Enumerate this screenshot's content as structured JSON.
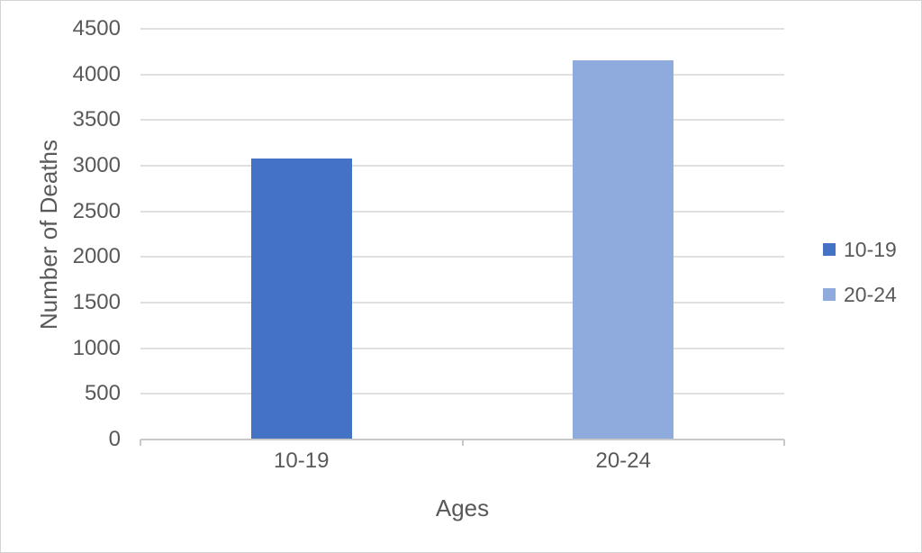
{
  "window": {
    "background": "#FFFFFF",
    "border_color": "#D3D3D3"
  },
  "chart_data": {
    "type": "bar",
    "title": "",
    "xlabel": "Ages",
    "ylabel": "Number of Deaths",
    "categories": [
      "10-19",
      "20-24"
    ],
    "series": [
      {
        "name": "10-19",
        "color": "#4472C4",
        "values": [
          3075,
          null
        ]
      },
      {
        "name": "20-24",
        "color": "#8FAADC",
        "values": [
          null,
          4150
        ]
      }
    ],
    "values_by_category": [
      3075,
      4150
    ],
    "ylim": [
      0,
      4500
    ],
    "ytick_step": 500,
    "ytick_labels": [
      "0",
      "500",
      "1000",
      "1500",
      "2000",
      "2500",
      "3000",
      "3500",
      "4000",
      "4500"
    ],
    "grid": true,
    "legend_position": "right",
    "legend_entries": [
      "10-19",
      "20-24"
    ],
    "axis_text_color": "#595959",
    "gridline_color": "#E0E0E0",
    "axis_line_color": "#C8C8C8"
  }
}
